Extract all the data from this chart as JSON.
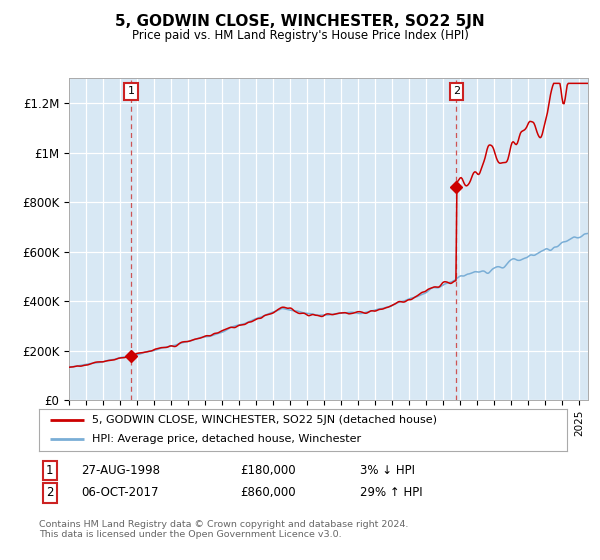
{
  "title": "5, GODWIN CLOSE, WINCHESTER, SO22 5JN",
  "subtitle": "Price paid vs. HM Land Registry's House Price Index (HPI)",
  "background_color": "#d8e8f4",
  "sale1_date": "27-AUG-1998",
  "sale1_price": 180000,
  "sale1_year": 1998.65,
  "sale2_date": "06-OCT-2017",
  "sale2_price": 860000,
  "sale2_year": 2017.77,
  "yticks": [
    0,
    200000,
    400000,
    600000,
    800000,
    1000000,
    1200000
  ],
  "ytick_labels": [
    "£0",
    "£200K",
    "£400K",
    "£600K",
    "£800K",
    "£1M",
    "£1.2M"
  ],
  "xmin": 1995,
  "xmax": 2025.5,
  "ymin": 0,
  "ymax": 1300000,
  "legend_line1": "5, GODWIN CLOSE, WINCHESTER, SO22 5JN (detached house)",
  "legend_line2": "HPI: Average price, detached house, Winchester",
  "footer": "Contains HM Land Registry data © Crown copyright and database right 2024.\nThis data is licensed under the Open Government Licence v3.0.",
  "sale_color": "#cc0000",
  "hpi_color": "#7aaed6",
  "annotation_box_color": "#cc2222",
  "dashed_line_color": "#cc4444",
  "table_row1": [
    "1",
    "27-AUG-1998",
    "£180,000",
    "3% ↓ HPI"
  ],
  "table_row2": [
    "2",
    "06-OCT-2017",
    "£860,000",
    "29% ↑ HPI"
  ]
}
